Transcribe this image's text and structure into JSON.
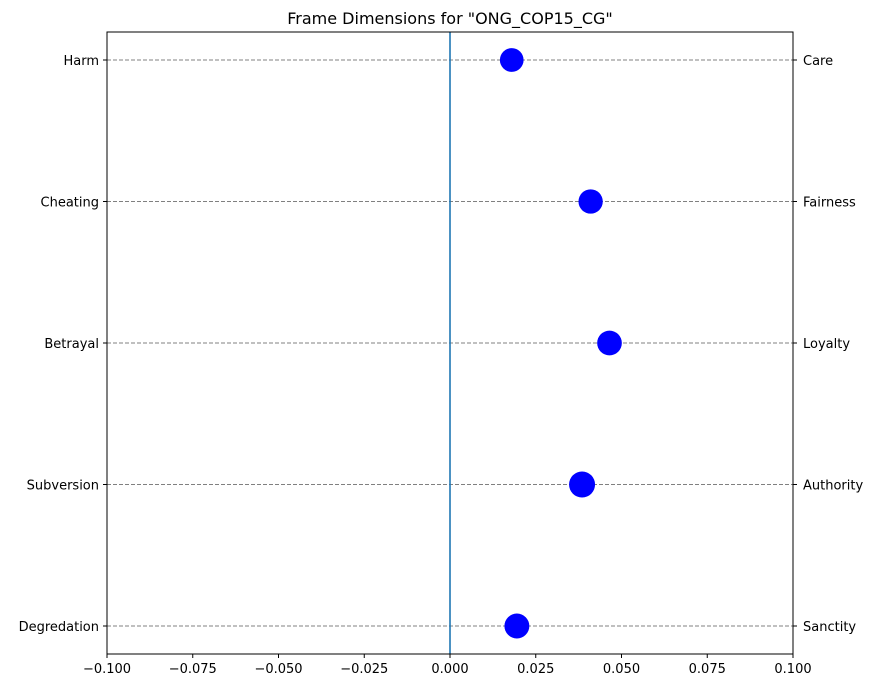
{
  "chart_data": {
    "type": "scatter",
    "title": "Frame Dimensions for \"ONG_COP15_CG\"",
    "xlim": [
      -0.1,
      0.1
    ],
    "x_ticks": [
      -0.1,
      -0.075,
      -0.05,
      -0.025,
      0.0,
      0.025,
      0.05,
      0.075,
      0.1
    ],
    "x_tick_labels": [
      "−0.100",
      "−0.075",
      "−0.050",
      "−0.025",
      "0.000",
      "0.025",
      "0.050",
      "0.075",
      "0.100"
    ],
    "left_labels": [
      "Harm",
      "Cheating",
      "Betrayal",
      "Subversion",
      "Degredation"
    ],
    "right_labels": [
      "Care",
      "Fairness",
      "Loyalty",
      "Authority",
      "Sanctity"
    ],
    "points": [
      {
        "x": 0.018,
        "marker_weight": 0.62
      },
      {
        "x": 0.041,
        "marker_weight": 0.72
      },
      {
        "x": 0.0465,
        "marker_weight": 0.78
      },
      {
        "x": 0.0385,
        "marker_weight": 1.0
      },
      {
        "x": 0.0195,
        "marker_weight": 0.82
      }
    ],
    "reference_line_x": 0.0,
    "grid": "horizontal dashed",
    "colors": {
      "points": "#0000ff",
      "reference_line": "#1f77b4",
      "grid": "#808080",
      "axes": "#000000"
    }
  }
}
